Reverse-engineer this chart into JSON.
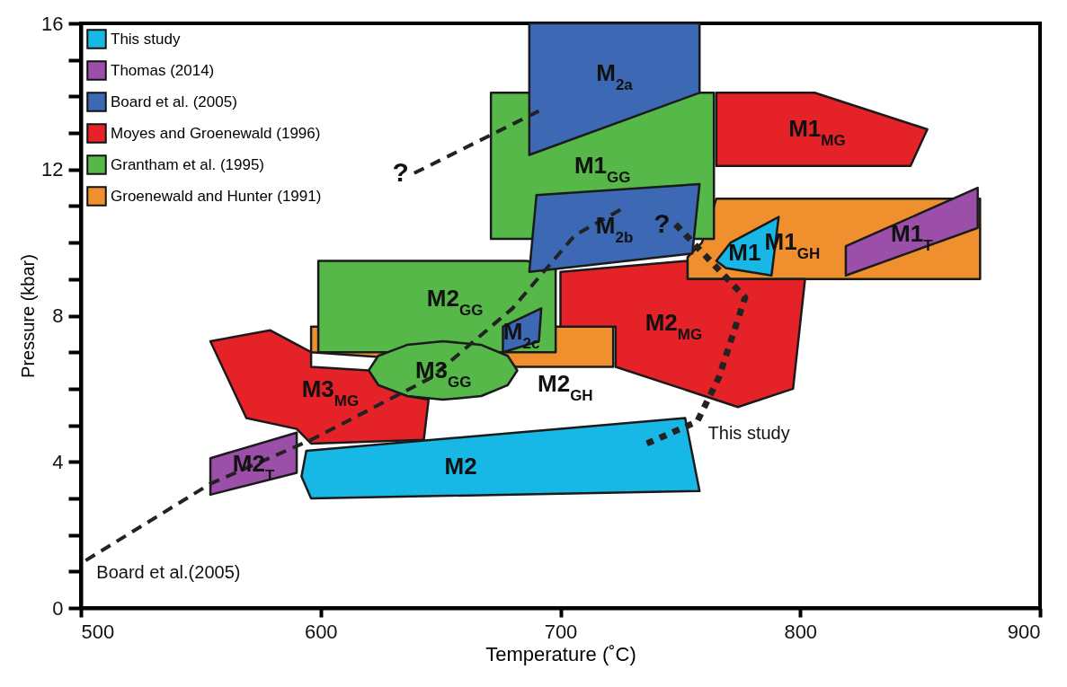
{
  "chart_data": {
    "type": "area",
    "xlabel": "Temperature (˚C)",
    "ylabel": "Pressure (kbar)",
    "xlim": [
      500,
      900
    ],
    "ylim": [
      0,
      16
    ],
    "xticks": [
      500,
      600,
      700,
      800,
      900
    ],
    "yticks": [
      0,
      {
        "value": 1,
        "label": null
      },
      {
        "value": 2,
        "label": null
      },
      {
        "value": 3,
        "label": null
      },
      4,
      {
        "value": 5,
        "label": null
      },
      {
        "value": 6,
        "label": null
      },
      {
        "value": 7,
        "label": null
      },
      8,
      {
        "value": 9,
        "label": null
      },
      {
        "value": 10,
        "label": null
      },
      {
        "value": 11,
        "label": null
      },
      12,
      {
        "value": 13,
        "label": null
      },
      {
        "value": 14,
        "label": null
      },
      {
        "value": 15,
        "label": null
      },
      16
    ],
    "grid": false,
    "legend": "top left",
    "series": [
      {
        "name": "This study",
        "color": "#18b8e6"
      },
      {
        "name": "Thomas (2014)",
        "color": "#9c4fa8"
      },
      {
        "name": "Board et al. (2005)",
        "color": "#3c68b4"
      },
      {
        "name": "Moyes and Groenewald (1996)",
        "color": "#e62229"
      },
      {
        "name": "Grantham et al. (1995)",
        "color": "#55b848"
      },
      {
        "name": "Groenewald and Hunter (1991)",
        "color": "#ef8f2d"
      },
      {
        "name": "M1$_{GH}$",
        "color": "#ef8f2d",
        "x": [
          765,
          875,
          875,
          753,
          753,
          759
        ],
        "values": [
          11.2,
          11.2,
          9.0,
          9.0,
          9.6,
          10.0
        ]
      },
      {
        "name": "M2$_{GH}$",
        "color": "#ef8f2d",
        "x": [
          596,
          722,
          722,
          682,
          596
        ],
        "values": [
          7.7,
          7.7,
          6.6,
          6.6,
          7.0
        ]
      },
      {
        "name": "M1$_{GG}$",
        "color": "#55b848",
        "x": [
          671,
          764,
          764,
          671
        ],
        "values": [
          14.1,
          14.1,
          10.1,
          10.1
        ]
      },
      {
        "name": "M2$_{GG}$",
        "color": "#55b848",
        "x": [
          599,
          686,
          698,
          698,
          599
        ],
        "values": [
          9.5,
          9.5,
          9.3,
          7.0,
          7.0
        ]
      },
      {
        "name": "M3$_{GG}$",
        "color": "#55b848",
        "x": [
          682,
          678,
          667,
          651,
          636,
          624,
          620,
          624,
          636,
          651,
          667,
          678
        ],
        "values": [
          6.5,
          6.9,
          7.2,
          7.3,
          7.2,
          6.9,
          6.5,
          6.1,
          5.8,
          5.7,
          5.8,
          6.1
        ]
      },
      {
        "name": "M1$_{MG}$",
        "color": "#e62229",
        "x": [
          765,
          806,
          853,
          846,
          765
        ],
        "values": [
          14.1,
          14.1,
          13.1,
          12.1,
          12.1
        ]
      },
      {
        "name": "M2$_{MG}$",
        "color": "#e62229",
        "x": [
          700,
          753,
          753,
          802,
          797,
          774,
          723,
          723,
          700
        ],
        "values": [
          9.2,
          9.5,
          9.0,
          9.0,
          6.0,
          5.5,
          6.6,
          7.7,
          7.7
        ]
      },
      {
        "name": "M3$_{MG}$",
        "color": "#e62229",
        "x": [
          554,
          579,
          596,
          596,
          620,
          624,
          636,
          645,
          643,
          596,
          590,
          569
        ],
        "values": [
          7.3,
          7.6,
          7.0,
          6.6,
          6.5,
          6.1,
          5.8,
          5.7,
          4.6,
          4.5,
          4.9,
          5.2
        ]
      },
      {
        "name": "M$_{2a}$",
        "color": "#3c68b4",
        "x": [
          687,
          758,
          758,
          687
        ],
        "values": [
          16,
          16,
          14.1,
          12.4
        ]
      },
      {
        "name": "M$_{2b}$",
        "color": "#3c68b4",
        "x": [
          690,
          758,
          755,
          687
        ],
        "values": [
          11.3,
          11.6,
          9.7,
          9.2
        ]
      },
      {
        "name": "M$_{2c}$",
        "color": "#3c68b4",
        "x": [
          676,
          692,
          691,
          676
        ],
        "values": [
          7.7,
          8.2,
          7.3,
          7.0
        ]
      },
      {
        "name": "M1$_{T}$",
        "color": "#9c4fa8",
        "x": [
          819,
          874,
          874,
          819
        ],
        "values": [
          9.9,
          11.5,
          10.4,
          9.1
        ]
      },
      {
        "name": "M2$_{T}$",
        "color": "#9c4fa8",
        "x": [
          554,
          590,
          590,
          554
        ],
        "values": [
          4.1,
          4.8,
          3.7,
          3.1
        ]
      },
      {
        "name": "M1",
        "color": "#18b8e6",
        "x": [
          765,
          771,
          791,
          788,
          769
        ],
        "values": [
          9.5,
          10.0,
          10.7,
          9.1,
          9.3
        ]
      },
      {
        "name": "M2",
        "color": "#18b8e6",
        "x": [
          594,
          752,
          758,
          596,
          592
        ],
        "values": [
          4.3,
          5.2,
          3.2,
          3.0,
          3.6
        ]
      },
      {
        "type": "line",
        "color": "#222222",
        "line_style": "dashed",
        "x": [
          725,
          706,
          680,
          646,
          596,
          554,
          502
        ],
        "values": [
          10.9,
          10.2,
          8.2,
          6.3,
          4.6,
          3.4,
          1.3
        ]
      },
      {
        "type": "line",
        "color": "#222222",
        "line_style": "dashed",
        "x": [
          639,
          691
        ],
        "values": [
          11.9,
          13.6
        ]
      },
      {
        "type": "line",
        "color": "#222222",
        "line_style": "dotted",
        "x": [
          748,
          777,
          766,
          757,
          736
        ],
        "values": [
          10.5,
          8.5,
          6.3,
          5.1,
          4.5
        ]
      }
    ],
    "annotations": [
      {
        "text": "?",
        "x": 639,
        "y": 11.9
      },
      {
        "text": "?",
        "x": 748,
        "y": 10.5
      },
      {
        "text": "This study",
        "x": 757,
        "y": 5.1
      },
      {
        "text": "Board et al.(2005)",
        "x": 502,
        "y": 1.3
      }
    ]
  }
}
